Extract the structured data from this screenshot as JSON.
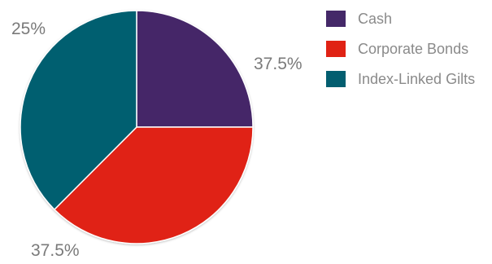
{
  "chart_data": {
    "type": "pie",
    "slices": [
      {
        "name": "Cash",
        "value": 25,
        "label": "25%",
        "color": "#442868"
      },
      {
        "name": "Corporate Bonds",
        "value": 37.5,
        "label": "37.5%",
        "color": "#e02214"
      },
      {
        "name": "Index-Linked Gilts",
        "value": 37.5,
        "label": "37.5%",
        "color": "#035e70"
      }
    ],
    "start_angle_deg": 0,
    "direction": "clockwise",
    "legend_position": "right"
  }
}
